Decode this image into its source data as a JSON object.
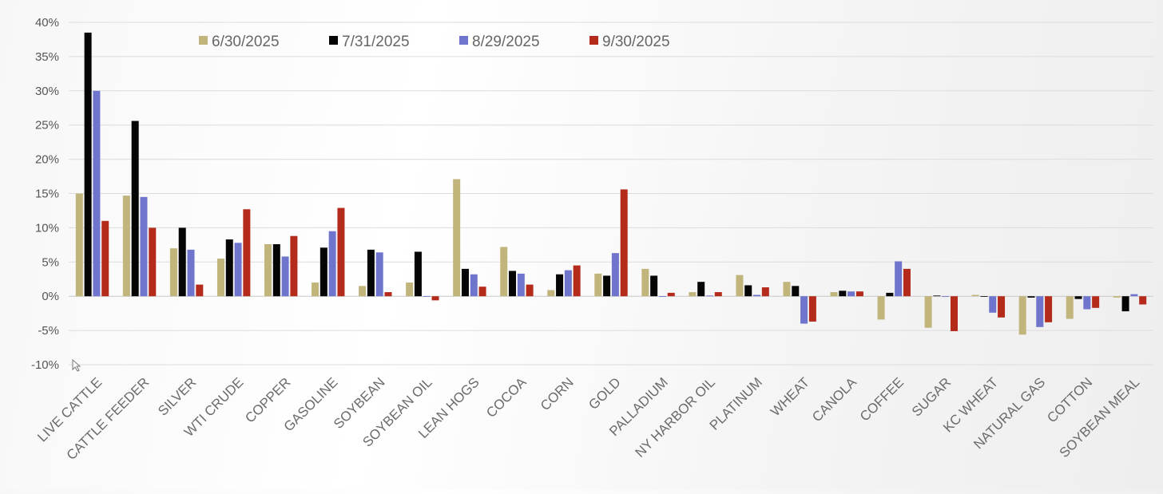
{
  "chart_data": {
    "type": "bar",
    "title": "",
    "xlabel": "",
    "ylabel": "",
    "ylim": [
      -10,
      40
    ],
    "ytick_step": 5,
    "ytick_format": "percent",
    "grid": true,
    "legend_position": "top-left",
    "categories": [
      "LIVE CATTLE",
      "CATTLE FEEDER",
      "SILVER",
      "WTI CRUDE",
      "COPPER",
      "GASOLINE",
      "SOYBEAN",
      "SOYBEAN OIL",
      "LEAN HOGS",
      "COCOA",
      "CORN",
      "GOLD",
      "PALLADIUM",
      "NY HARBOR OIL",
      "PLATINUM",
      "WHEAT",
      "CANOLA",
      "COFFEE",
      "SUGAR",
      "KC WHEAT",
      "NATURAL GAS",
      "COTTON",
      "SOYBEAN MEAL"
    ],
    "series": [
      {
        "name": "6/30/2025",
        "color": "#c2b57c",
        "values": [
          15.0,
          14.7,
          7.0,
          5.5,
          7.6,
          2.0,
          1.5,
          2.0,
          17.1,
          7.2,
          0.9,
          3.3,
          4.0,
          0.6,
          3.1,
          2.1,
          0.6,
          -3.4,
          -4.6,
          0.2,
          -5.6,
          -3.3,
          -0.2
        ]
      },
      {
        "name": "7/31/2025",
        "color": "#050505",
        "values": [
          38.5,
          25.6,
          10.0,
          8.3,
          7.6,
          7.1,
          6.8,
          6.5,
          4.0,
          3.7,
          3.2,
          3.0,
          3.0,
          2.1,
          1.6,
          1.5,
          0.8,
          0.5,
          0.1,
          0.0,
          -0.2,
          -0.4,
          -2.2
        ]
      },
      {
        "name": "8/29/2025",
        "color": "#6f74cc",
        "values": [
          30.0,
          14.5,
          6.8,
          7.8,
          5.8,
          9.5,
          6.4,
          0.0,
          3.2,
          3.3,
          3.8,
          6.3,
          -0.1,
          0.1,
          0.2,
          -4.0,
          0.7,
          5.1,
          -0.1,
          -2.4,
          -4.5,
          -1.9,
          0.3
        ]
      },
      {
        "name": "9/30/2025",
        "color": "#b42a1b",
        "values": [
          11.0,
          10.0,
          1.7,
          12.7,
          8.8,
          12.9,
          0.6,
          -0.6,
          1.4,
          1.7,
          4.5,
          15.6,
          0.5,
          0.6,
          1.3,
          -3.7,
          0.7,
          4.0,
          -5.1,
          -3.1,
          -3.8,
          -1.7,
          -1.2
        ]
      }
    ]
  }
}
